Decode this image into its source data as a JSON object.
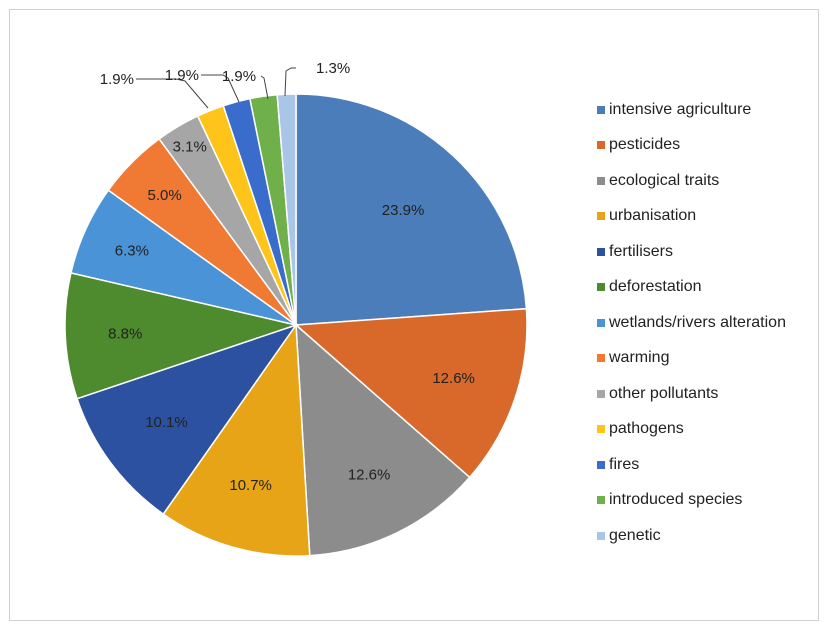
{
  "chart_data": {
    "type": "pie",
    "categories": [
      "intensive agriculture",
      "pesticides",
      "ecological traits",
      "urbanisation",
      "fertilisers",
      "deforestation",
      "wetlands/rivers alteration",
      "warming",
      "other pollutants",
      "pathogens",
      "fires",
      "introduced species",
      "genetic"
    ],
    "values": [
      23.9,
      12.6,
      12.6,
      10.7,
      10.1,
      8.8,
      6.3,
      5.0,
      3.1,
      1.9,
      1.9,
      1.9,
      1.3
    ],
    "labels": [
      "23.9%",
      "12.6%",
      "12.6%",
      "10.7%",
      "10.1%",
      "8.8%",
      "6.3%",
      "5.0%",
      "3.1%",
      "1.9%",
      "1.9%",
      "1.9%",
      "1.3%"
    ],
    "colors": [
      "#4a7dba",
      "#d9692a",
      "#8c8c8c",
      "#e6a416",
      "#2c51a0",
      "#4e8a2e",
      "#4a93d6",
      "#f07a33",
      "#a6a6a6",
      "#ffc41a",
      "#3a6ccc",
      "#6fb04a",
      "#a9c6e8"
    ],
    "legend_position": "right",
    "start_angle": "top, clockwise"
  }
}
